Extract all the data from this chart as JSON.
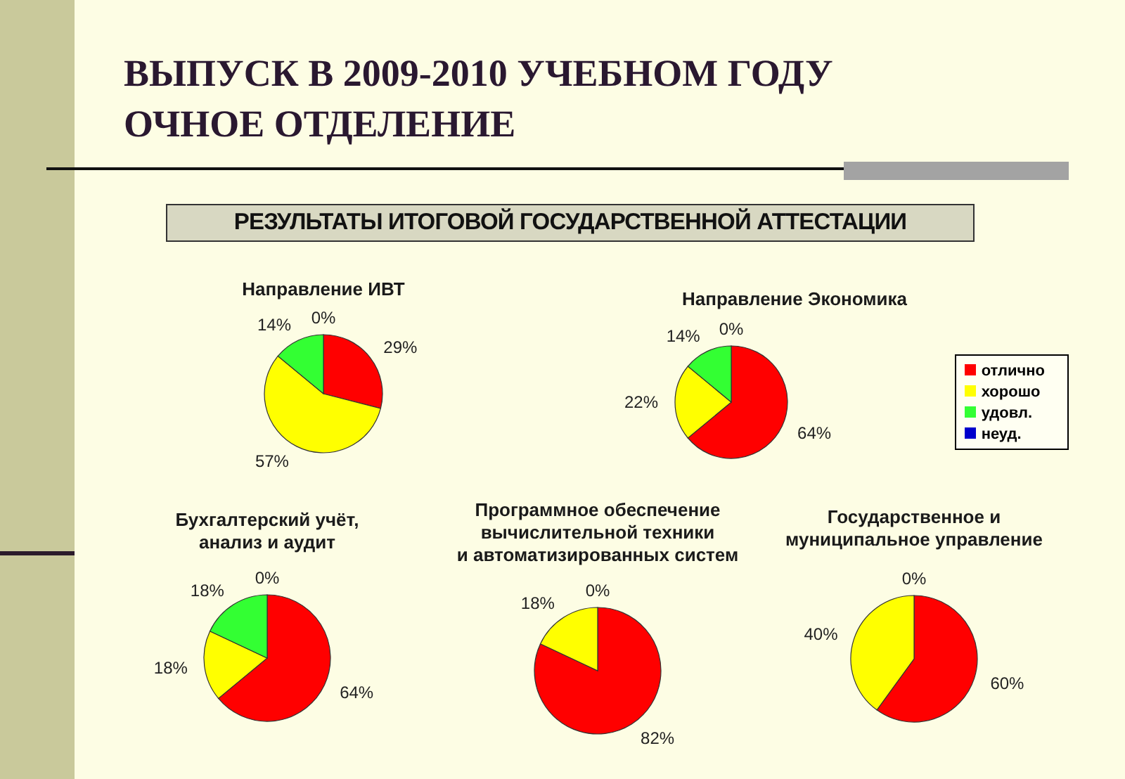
{
  "chart_data": [
    {
      "type": "other",
      "title": "ВЫПУСК В 2009-2010 УЧЕБНОМ ГОДУ ОЧНОЕ ОТДЕЛЕНИЕ",
      "subtitle": "РЕЗУЛЬТАТЫ ИТОГОВОЙ ГОСУДАРСТВЕННОЙ АТТЕСТАЦИИ"
    },
    {
      "type": "pie",
      "title": "Направление ИВТ",
      "categories": [
        null,
        null,
        null,
        null
      ],
      "values": [
        29,
        57,
        14,
        0
      ],
      "value_labels": [
        "29%",
        "57%",
        "14%",
        "0%"
      ],
      "colors": [
        "#ff0000",
        "#ffff00",
        "#33ff33",
        "#0000cc"
      ]
    },
    {
      "type": "pie",
      "title": "Направление Экономика",
      "categories": [
        "отлично",
        "хорошо",
        "удовл.",
        "неуд."
      ],
      "values": [
        64,
        22,
        14,
        0
      ],
      "value_labels": [
        "64%",
        "22%",
        "14%",
        "0%"
      ],
      "colors": [
        "#ff0000",
        "#ffff00",
        "#33ff33",
        "#0000cc"
      ],
      "legend": "right"
    },
    {
      "type": "pie",
      "title": "Бухгалтерский учёт,\nанализ и аудит",
      "categories": [
        null,
        null,
        null,
        null
      ],
      "values": [
        64,
        18,
        18,
        0
      ],
      "value_labels": [
        "64%",
        "18%",
        "18%",
        "0%"
      ],
      "colors": [
        "#ff0000",
        "#ffff00",
        "#33ff33",
        "#0000cc"
      ]
    },
    {
      "type": "pie",
      "title": "Программное обеспечение\nвычислительной техники\nи автоматизированных систем",
      "categories": [
        null,
        null,
        null,
        null
      ],
      "values": [
        82,
        18,
        0,
        0
      ],
      "value_labels": [
        "82%",
        "18%",
        null,
        "0%"
      ],
      "colors": [
        "#ff0000",
        "#ffff00",
        "#33ff33",
        "#0000cc"
      ]
    },
    {
      "type": "pie",
      "title": "Государственное и\nмуниципальное управление",
      "categories": [
        null,
        null,
        null,
        null
      ],
      "values": [
        60,
        40,
        0,
        0
      ],
      "value_labels": [
        "60%",
        "40%",
        null,
        "0%"
      ],
      "colors": [
        "#ff0000",
        "#ffff00",
        "#33ff33",
        "#0000cc"
      ]
    }
  ]
}
